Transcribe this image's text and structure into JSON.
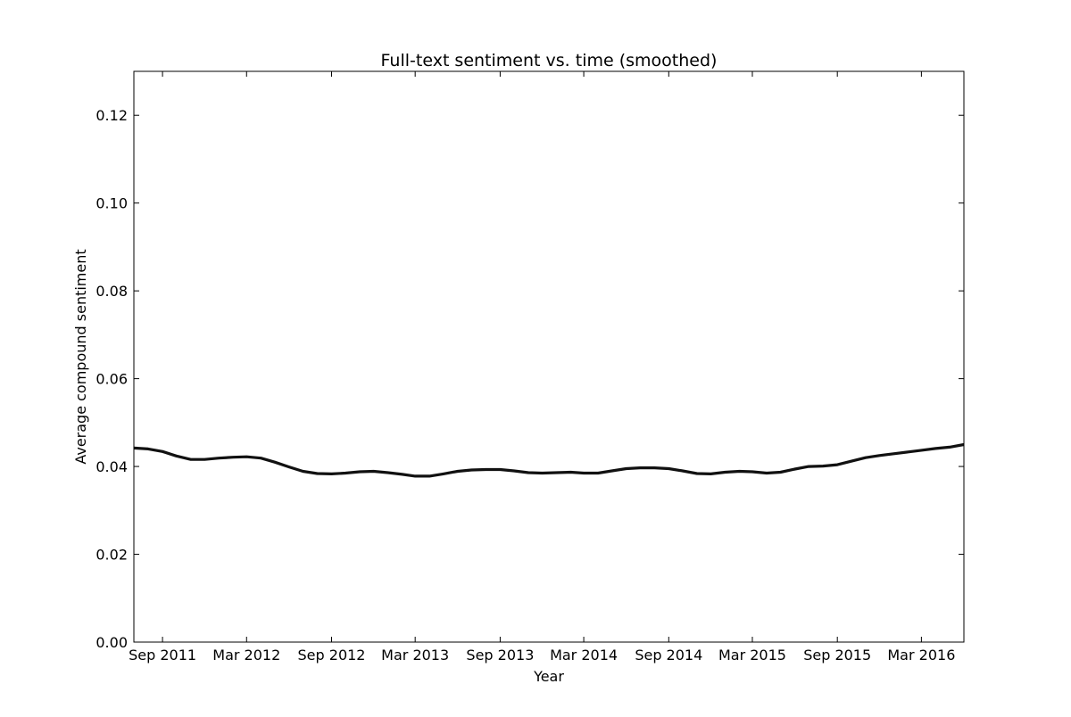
{
  "chart_data": {
    "type": "line",
    "title": "Full-text sentiment vs. time (smoothed)",
    "xlabel": "Year",
    "ylabel": "Average compound sentiment",
    "xlim": [
      "2011-07-01",
      "2016-06-01"
    ],
    "ylim": [
      0,
      0.13
    ],
    "yticks": [
      0.0,
      0.02,
      0.04,
      0.06,
      0.08,
      0.1,
      0.12
    ],
    "ytick_labels": [
      "0.00",
      "0.02",
      "0.04",
      "0.06",
      "0.08",
      "0.10",
      "0.12"
    ],
    "xticks": [
      "2011-09-01",
      "2012-03-01",
      "2012-09-01",
      "2013-03-01",
      "2013-09-01",
      "2014-03-01",
      "2014-09-01",
      "2015-03-01",
      "2015-09-01",
      "2016-03-01"
    ],
    "xtick_labels": [
      "Sep 2011",
      "Mar 2012",
      "Sep 2012",
      "Mar 2013",
      "Sep 2013",
      "Mar 2014",
      "Sep 2014",
      "Mar 2015",
      "Sep 2015",
      "Mar 2016"
    ],
    "grid": false,
    "line_color": "#111111",
    "series": [
      {
        "x": [
          "2011-07-01",
          "2011-08-01",
          "2011-09-01",
          "2011-10-01",
          "2011-11-01",
          "2011-12-01",
          "2012-01-01",
          "2012-02-01",
          "2012-03-01",
          "2012-04-01",
          "2012-05-01",
          "2012-06-01",
          "2012-07-01",
          "2012-08-01",
          "2012-09-01",
          "2012-10-01",
          "2012-11-01",
          "2012-12-01",
          "2013-01-01",
          "2013-02-01",
          "2013-03-01",
          "2013-04-01",
          "2013-05-01",
          "2013-06-01",
          "2013-07-01",
          "2013-08-01",
          "2013-09-01",
          "2013-10-01",
          "2013-11-01",
          "2013-12-01",
          "2014-01-01",
          "2014-02-01",
          "2014-03-01",
          "2014-04-01",
          "2014-05-01",
          "2014-06-01",
          "2014-07-01",
          "2014-08-01",
          "2014-09-01",
          "2014-10-01",
          "2014-11-01",
          "2014-12-01",
          "2015-01-01",
          "2015-02-01",
          "2015-03-01",
          "2015-04-01",
          "2015-05-01",
          "2015-06-01",
          "2015-07-01",
          "2015-08-01",
          "2015-09-01",
          "2015-10-01",
          "2015-11-01",
          "2015-12-01",
          "2016-01-01",
          "2016-02-01",
          "2016-03-01",
          "2016-04-01",
          "2016-05-01",
          "2016-06-01"
        ],
        "y": [
          0.0442,
          0.044,
          0.0434,
          0.0424,
          0.0416,
          0.0416,
          0.0419,
          0.0421,
          0.0422,
          0.0419,
          0.041,
          0.0399,
          0.0389,
          0.0384,
          0.0383,
          0.0385,
          0.0388,
          0.0389,
          0.0386,
          0.0382,
          0.0378,
          0.0378,
          0.0383,
          0.0389,
          0.0392,
          0.0393,
          0.0393,
          0.039,
          0.0386,
          0.0385,
          0.0386,
          0.0387,
          0.0385,
          0.0385,
          0.039,
          0.0395,
          0.0397,
          0.0397,
          0.0395,
          0.039,
          0.0384,
          0.0383,
          0.0387,
          0.0389,
          0.0388,
          0.0385,
          0.0387,
          0.0394,
          0.04,
          0.0401,
          0.0404,
          0.0412,
          0.042,
          0.0425,
          0.0429,
          0.0433,
          0.0437,
          0.0441,
          0.0444,
          0.045
        ]
      }
    ]
  }
}
